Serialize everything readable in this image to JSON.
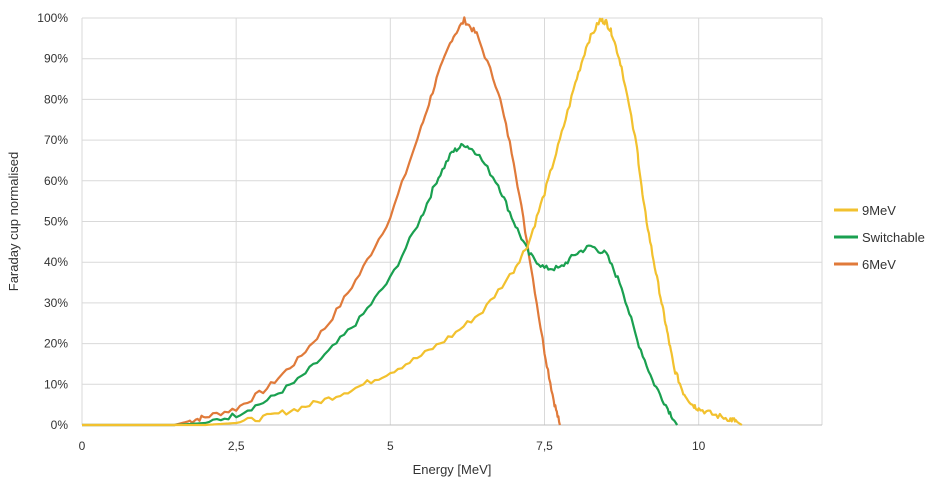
{
  "chart_data": {
    "type": "line",
    "title": "",
    "xlabel": "Energy [MeV]",
    "ylabel": "Faraday cup normalised",
    "xlim": [
      0,
      12
    ],
    "ylim": [
      0,
      100
    ],
    "x_ticks": [
      0,
      2.5,
      5,
      7.5,
      10
    ],
    "x_tick_labels": [
      "0",
      "2,5",
      "5",
      "7,5",
      "10"
    ],
    "y_ticks": [
      0,
      10,
      20,
      30,
      40,
      50,
      60,
      70,
      80,
      90,
      100
    ],
    "y_tick_labels": [
      "0%",
      "10%",
      "20%",
      "30%",
      "40%",
      "50%",
      "60%",
      "70%",
      "80%",
      "90%",
      "100%"
    ],
    "grid": true,
    "legend_position": "right",
    "series": [
      {
        "name": "9MeV",
        "color": "#F2C12E",
        "x": [
          0,
          1.5,
          2.0,
          2.5,
          3.0,
          3.5,
          4.0,
          4.5,
          5.0,
          5.5,
          6.0,
          6.5,
          7.0,
          7.25,
          7.5,
          7.75,
          8.0,
          8.2,
          8.4,
          8.5,
          8.6,
          8.75,
          9.0,
          9.1,
          9.25,
          9.4,
          9.5,
          9.6,
          9.75,
          9.9,
          10.0,
          10.25,
          10.5,
          10.6,
          10.7
        ],
        "y": [
          0,
          0,
          0,
          0.5,
          2,
          4,
          6.5,
          9.5,
          13,
          17,
          22,
          28,
          38,
          45,
          57,
          70,
          84,
          94,
          99.5,
          99,
          96,
          88,
          68,
          55,
          42,
          30,
          22,
          14,
          8,
          5,
          4,
          2.5,
          1.5,
          1,
          0
        ]
      },
      {
        "name": "Switchable",
        "color": "#1AA050",
        "x": [
          0,
          1.5,
          2.0,
          2.5,
          3.0,
          3.5,
          4.0,
          4.5,
          5.0,
          5.5,
          5.75,
          6.0,
          6.2,
          6.4,
          6.75,
          7.0,
          7.25,
          7.5,
          7.75,
          8.0,
          8.25,
          8.5,
          8.75,
          9.0,
          9.25,
          9.5,
          9.65
        ],
        "y": [
          0,
          0,
          0.5,
          2.5,
          6,
          11,
          18,
          26,
          36,
          51,
          60,
          67,
          69,
          67,
          59,
          50,
          42,
          38.5,
          38.5,
          42,
          44,
          42,
          34,
          21,
          11,
          4,
          0
        ]
      },
      {
        "name": "6MeV",
        "color": "#E07A3A",
        "x": [
          0,
          1.5,
          1.75,
          2.0,
          2.5,
          3.0,
          3.5,
          4.0,
          4.5,
          5.0,
          5.5,
          5.75,
          6.0,
          6.2,
          6.4,
          6.75,
          7.0,
          7.25,
          7.5,
          7.65,
          7.75
        ],
        "y": [
          0,
          0,
          1,
          2,
          4,
          9,
          16,
          25,
          37,
          51,
          73,
          85,
          95,
          99.5,
          96,
          82,
          65,
          42,
          18,
          6,
          0
        ]
      }
    ]
  }
}
